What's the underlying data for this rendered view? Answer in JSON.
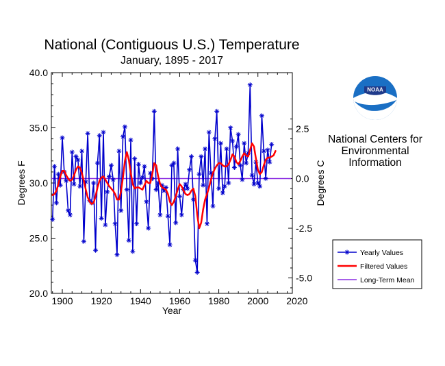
{
  "header": {
    "title": "National (Contiguous U.S.) Temperature",
    "subtitle": "January, 1895 - 2017"
  },
  "organization": {
    "logo_text": "NOAA",
    "lines": [
      "National Centers for",
      "Environmental",
      "Information"
    ]
  },
  "colors": {
    "yearly": "#0000cc",
    "filtered": "#ff0000",
    "mean": "#8a2be2",
    "logo_blue": "#1a6fc4",
    "logo_navy": "#1f3a8a"
  },
  "chart_data": {
    "type": "line",
    "title": "National (Contiguous U.S.) Temperature",
    "subtitle": "January, 1895 - 2017",
    "xlabel": "Year",
    "ylabel": "Degrees F",
    "ylabel_right": "Degrees C",
    "xlim": [
      1895,
      2017
    ],
    "ylim": [
      20,
      40
    ],
    "x_ticks": [
      1900,
      1920,
      1940,
      1960,
      1980,
      2000,
      2020
    ],
    "y_ticks": [
      20.0,
      25.0,
      30.0,
      35.0,
      40.0
    ],
    "y_tick_labels": [
      "20.0",
      "25.0",
      "30.0",
      "35.0",
      "40.0"
    ],
    "right_ticks_c": [
      2.5,
      0.0,
      -2.5,
      -5.0
    ],
    "right_tick_labels": [
      "2.5",
      "0.0",
      "-2.5",
      "-5.0"
    ],
    "grid": false,
    "legend_position": "right",
    "series": [
      {
        "name": "Yearly Values",
        "style": "line-star",
        "x_start": 1895,
        "values": [
          26.7,
          31.5,
          28.2,
          30.8,
          29.8,
          34.1,
          31.0,
          30.2,
          27.5,
          27.1,
          32.8,
          29.9,
          32.4,
          32.1,
          29.7,
          32.9,
          24.7,
          30.1,
          34.5,
          28.4,
          28.2,
          30.0,
          23.9,
          31.8,
          34.3,
          26.8,
          34.6,
          26.2,
          29.2,
          30.6,
          31.6,
          30.3,
          26.3,
          23.5,
          32.9,
          27.5,
          34.2,
          35.1,
          29.4,
          24.8,
          33.9,
          23.8,
          32.2,
          26.3,
          31.7,
          30.0,
          30.5,
          31.5,
          28.3,
          25.9,
          30.9,
          30.4,
          36.5,
          29.4,
          30.0,
          27.1,
          29.8,
          29.3,
          29.6,
          27.0,
          24.4,
          31.6,
          31.8,
          26.4,
          33.1,
          28.8,
          27.1,
          29.4,
          29.9,
          29.5,
          31.2,
          32.4,
          28.5,
          23.0,
          21.9,
          30.8,
          32.4,
          29.8,
          33.1,
          26.3,
          34.6,
          30.9,
          27.9,
          34.0,
          36.5,
          29.5,
          33.6,
          29.1,
          29.7,
          33.1,
          30.0,
          35.0,
          33.8,
          31.4,
          33.3,
          34.4,
          31.6,
          30.3,
          33.6,
          31.8,
          32.7,
          38.9,
          30.7,
          29.9,
          31.9,
          30.0,
          29.7,
          36.1,
          32.9,
          30.4,
          33.0,
          31.9,
          33.5
        ]
      },
      {
        "name": "Filtered Values",
        "style": "smooth",
        "x_start": 1895,
        "values": [
          28.9,
          29.0,
          29.3,
          29.9,
          30.6,
          31.1,
          31.1,
          30.7,
          30.4,
          30.2,
          30.3,
          30.7,
          31.2,
          31.5,
          31.4,
          30.9,
          30.2,
          29.4,
          28.7,
          28.3,
          28.1,
          28.2,
          28.8,
          29.6,
          30.2,
          30.5,
          30.6,
          30.3,
          30.0,
          29.7,
          29.5,
          29.3,
          29.0,
          28.5,
          28.5,
          29.2,
          30.5,
          32.0,
          32.8,
          32.1,
          30.9,
          29.9,
          29.5,
          29.6,
          29.6,
          29.5,
          29.4,
          29.8,
          30.2,
          30.0,
          30.0,
          30.8,
          31.8,
          31.6,
          30.6,
          29.9,
          29.6,
          29.5,
          29.4,
          29.0,
          28.3,
          28.0,
          28.3,
          28.8,
          29.4,
          29.9,
          29.7,
          29.3,
          29.0,
          28.9,
          29.0,
          29.3,
          29.5,
          28.8,
          27.1,
          25.9,
          26.4,
          27.6,
          28.5,
          29.0,
          29.6,
          30.3,
          30.9,
          31.3,
          31.6,
          31.8,
          31.8,
          31.6,
          31.5,
          31.5,
          31.7,
          32.1,
          32.6,
          32.4,
          31.9,
          31.7,
          32.0,
          32.4,
          32.7,
          32.5,
          32.4,
          33.0,
          33.6,
          33.3,
          32.2,
          31.2,
          30.8,
          31.0,
          31.6,
          32.1,
          32.3,
          32.3,
          32.4,
          32.5,
          32.9
        ]
      },
      {
        "name": "Long-Term Mean",
        "style": "flat",
        "values": [
          30.4,
          30.4
        ]
      }
    ]
  }
}
